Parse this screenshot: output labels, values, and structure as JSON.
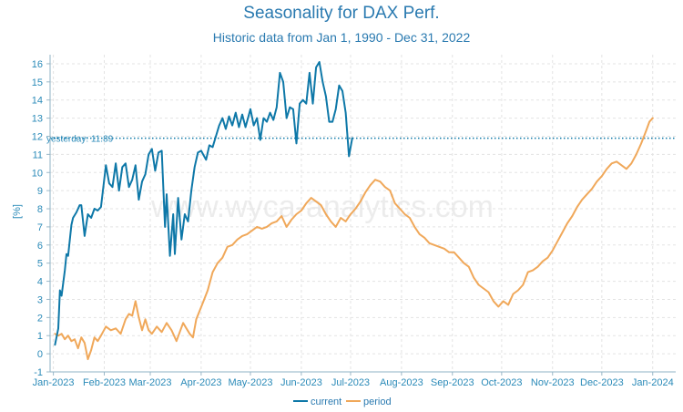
{
  "chart_data": {
    "type": "line",
    "title": "Seasonality for DAX Perf.",
    "subtitle": "Historic data from Jan 1, 1990 - Dec 31, 2022",
    "ylabel": "[%]",
    "xlabel": "",
    "ylim": [
      -1,
      16.5
    ],
    "yticks": [
      -1,
      0,
      1,
      2,
      3,
      4,
      5,
      6,
      7,
      8,
      9,
      10,
      11,
      12,
      13,
      14,
      15,
      16
    ],
    "xlim": [
      "2022-12-30",
      "2024-01-15"
    ],
    "xticks": [
      {
        "date": "2023-01-01",
        "label": "Jan-2023"
      },
      {
        "date": "2023-02-01",
        "label": "Feb-2023"
      },
      {
        "date": "2023-03-01",
        "label": "Mar-2023"
      },
      {
        "date": "2023-04-01",
        "label": "Apr-2023"
      },
      {
        "date": "2023-05-01",
        "label": "May-2023"
      },
      {
        "date": "2023-06-01",
        "label": "Jun-2023"
      },
      {
        "date": "2023-07-01",
        "label": "Jul-2023"
      },
      {
        "date": "2023-08-01",
        "label": "Aug-2023"
      },
      {
        "date": "2023-09-01",
        "label": "Sep-2023"
      },
      {
        "date": "2023-10-01",
        "label": "Oct-2023"
      },
      {
        "date": "2023-11-01",
        "label": "Nov-2023"
      },
      {
        "date": "2023-12-01",
        "label": "Dec-2023"
      },
      {
        "date": "2024-01-01",
        "label": "Jan-2024"
      }
    ],
    "grid": true,
    "legend_position": "bottom-center",
    "reference_line": {
      "value": 11.89,
      "label": "yesterday: 11.89",
      "color": "#0e78a8"
    },
    "watermark": "www.wyca-analytics.com",
    "series": [
      {
        "name": "current",
        "color": "#0e78a8",
        "points": [
          [
            "2023-01-02",
            0.5
          ],
          [
            "2023-01-04",
            1.4
          ],
          [
            "2023-01-05",
            3.5
          ],
          [
            "2023-01-06",
            3.2
          ],
          [
            "2023-01-08",
            4.6
          ],
          [
            "2023-01-09",
            5.5
          ],
          [
            "2023-01-10",
            5.4
          ],
          [
            "2023-01-12",
            7.1
          ],
          [
            "2023-01-13",
            7.5
          ],
          [
            "2023-01-15",
            7.8
          ],
          [
            "2023-01-17",
            8.2
          ],
          [
            "2023-01-18",
            8.2
          ],
          [
            "2023-01-20",
            6.5
          ],
          [
            "2023-01-22",
            7.7
          ],
          [
            "2023-01-24",
            7.5
          ],
          [
            "2023-01-26",
            8.0
          ],
          [
            "2023-01-28",
            7.9
          ],
          [
            "2023-01-30",
            8.1
          ],
          [
            "2023-02-02",
            10.4
          ],
          [
            "2023-02-04",
            9.4
          ],
          [
            "2023-02-06",
            9.2
          ],
          [
            "2023-02-08",
            10.5
          ],
          [
            "2023-02-10",
            9.0
          ],
          [
            "2023-02-12",
            10.3
          ],
          [
            "2023-02-14",
            10.5
          ],
          [
            "2023-02-16",
            9.2
          ],
          [
            "2023-02-18",
            9.6
          ],
          [
            "2023-02-20",
            10.4
          ],
          [
            "2023-02-22",
            8.5
          ],
          [
            "2023-02-24",
            9.5
          ],
          [
            "2023-02-26",
            9.9
          ],
          [
            "2023-02-28",
            11.0
          ],
          [
            "2023-03-02",
            11.3
          ],
          [
            "2023-03-04",
            10.1
          ],
          [
            "2023-03-06",
            11.1
          ],
          [
            "2023-03-08",
            11.2
          ],
          [
            "2023-03-10",
            7.0
          ],
          [
            "2023-03-11",
            8.8
          ],
          [
            "2023-03-13",
            5.4
          ],
          [
            "2023-03-15",
            7.7
          ],
          [
            "2023-03-16",
            5.5
          ],
          [
            "2023-03-18",
            8.6
          ],
          [
            "2023-03-20",
            6.3
          ],
          [
            "2023-03-22",
            7.7
          ],
          [
            "2023-03-24",
            7.3
          ],
          [
            "2023-03-26",
            9.0
          ],
          [
            "2023-03-28",
            10.3
          ],
          [
            "2023-03-30",
            11.1
          ],
          [
            "2023-04-01",
            11.2
          ],
          [
            "2023-04-04",
            10.7
          ],
          [
            "2023-04-06",
            11.5
          ],
          [
            "2023-04-08",
            11.4
          ],
          [
            "2023-04-10",
            12.0
          ],
          [
            "2023-04-12",
            12.6
          ],
          [
            "2023-04-14",
            13.0
          ],
          [
            "2023-04-16",
            12.4
          ],
          [
            "2023-04-18",
            13.1
          ],
          [
            "2023-04-20",
            12.6
          ],
          [
            "2023-04-22",
            13.3
          ],
          [
            "2023-04-24",
            12.5
          ],
          [
            "2023-04-26",
            13.2
          ],
          [
            "2023-04-28",
            12.5
          ],
          [
            "2023-05-01",
            13.5
          ],
          [
            "2023-05-03",
            12.6
          ],
          [
            "2023-05-05",
            13.0
          ],
          [
            "2023-05-07",
            11.8
          ],
          [
            "2023-05-09",
            13.0
          ],
          [
            "2023-05-11",
            12.8
          ],
          [
            "2023-05-13",
            13.3
          ],
          [
            "2023-05-15",
            12.9
          ],
          [
            "2023-05-17",
            13.6
          ],
          [
            "2023-05-19",
            15.5
          ],
          [
            "2023-05-21",
            15.0
          ],
          [
            "2023-05-23",
            13.0
          ],
          [
            "2023-05-25",
            13.6
          ],
          [
            "2023-05-27",
            13.5
          ],
          [
            "2023-05-29",
            11.6
          ],
          [
            "2023-05-31",
            13.8
          ],
          [
            "2023-06-02",
            14.0
          ],
          [
            "2023-06-04",
            13.8
          ],
          [
            "2023-06-06",
            15.5
          ],
          [
            "2023-06-08",
            13.8
          ],
          [
            "2023-06-10",
            15.8
          ],
          [
            "2023-06-12",
            16.1
          ],
          [
            "2023-06-14",
            15.0
          ],
          [
            "2023-06-16",
            14.2
          ],
          [
            "2023-06-18",
            12.8
          ],
          [
            "2023-06-20",
            12.8
          ],
          [
            "2023-06-22",
            13.5
          ],
          [
            "2023-06-24",
            14.8
          ],
          [
            "2023-06-26",
            14.5
          ],
          [
            "2023-06-28",
            13.3
          ],
          [
            "2023-06-30",
            10.9
          ],
          [
            "2023-07-02",
            11.9
          ]
        ]
      },
      {
        "name": "period",
        "color": "#f0a85a",
        "points": [
          [
            "2023-01-02",
            1.1
          ],
          [
            "2023-01-04",
            1.0
          ],
          [
            "2023-01-06",
            1.1
          ],
          [
            "2023-01-08",
            0.8
          ],
          [
            "2023-01-10",
            1.0
          ],
          [
            "2023-01-12",
            0.7
          ],
          [
            "2023-01-14",
            0.8
          ],
          [
            "2023-01-16",
            0.3
          ],
          [
            "2023-01-18",
            0.9
          ],
          [
            "2023-01-20",
            0.6
          ],
          [
            "2023-01-22",
            -0.3
          ],
          [
            "2023-01-24",
            0.2
          ],
          [
            "2023-01-26",
            0.9
          ],
          [
            "2023-01-28",
            0.7
          ],
          [
            "2023-01-30",
            1.0
          ],
          [
            "2023-02-02",
            1.5
          ],
          [
            "2023-02-05",
            1.3
          ],
          [
            "2023-02-08",
            1.4
          ],
          [
            "2023-02-11",
            1.1
          ],
          [
            "2023-02-14",
            1.9
          ],
          [
            "2023-02-16",
            2.2
          ],
          [
            "2023-02-18",
            2.1
          ],
          [
            "2023-02-20",
            2.9
          ],
          [
            "2023-02-22",
            2.0
          ],
          [
            "2023-02-24",
            1.3
          ],
          [
            "2023-02-26",
            1.9
          ],
          [
            "2023-02-28",
            1.3
          ],
          [
            "2023-03-02",
            1.1
          ],
          [
            "2023-03-05",
            1.5
          ],
          [
            "2023-03-08",
            1.2
          ],
          [
            "2023-03-11",
            1.7
          ],
          [
            "2023-03-14",
            1.3
          ],
          [
            "2023-03-17",
            0.7
          ],
          [
            "2023-03-19",
            1.2
          ],
          [
            "2023-03-21",
            1.7
          ],
          [
            "2023-03-23",
            1.4
          ],
          [
            "2023-03-25",
            1.1
          ],
          [
            "2023-03-27",
            0.9
          ],
          [
            "2023-03-29",
            1.9
          ],
          [
            "2023-04-02",
            2.8
          ],
          [
            "2023-04-05",
            3.5
          ],
          [
            "2023-04-08",
            4.5
          ],
          [
            "2023-04-11",
            5.0
          ],
          [
            "2023-04-14",
            5.3
          ],
          [
            "2023-04-17",
            5.9
          ],
          [
            "2023-04-20",
            6.0
          ],
          [
            "2023-04-23",
            6.3
          ],
          [
            "2023-04-26",
            6.5
          ],
          [
            "2023-04-29",
            6.6
          ],
          [
            "2023-05-02",
            6.8
          ],
          [
            "2023-05-05",
            7.0
          ],
          [
            "2023-05-08",
            6.9
          ],
          [
            "2023-05-11",
            7.0
          ],
          [
            "2023-05-14",
            7.2
          ],
          [
            "2023-05-17",
            7.3
          ],
          [
            "2023-05-20",
            7.6
          ],
          [
            "2023-05-23",
            7.0
          ],
          [
            "2023-05-26",
            7.4
          ],
          [
            "2023-05-29",
            7.7
          ],
          [
            "2023-06-01",
            7.9
          ],
          [
            "2023-06-04",
            8.3
          ],
          [
            "2023-06-07",
            8.6
          ],
          [
            "2023-06-10",
            8.4
          ],
          [
            "2023-06-13",
            8.2
          ],
          [
            "2023-06-16",
            7.7
          ],
          [
            "2023-06-19",
            7.3
          ],
          [
            "2023-06-22",
            7.0
          ],
          [
            "2023-06-25",
            7.5
          ],
          [
            "2023-06-28",
            7.3
          ],
          [
            "2023-07-01",
            7.7
          ],
          [
            "2023-07-04",
            8.0
          ],
          [
            "2023-07-07",
            8.4
          ],
          [
            "2023-07-10",
            8.9
          ],
          [
            "2023-07-13",
            9.3
          ],
          [
            "2023-07-16",
            9.6
          ],
          [
            "2023-07-19",
            9.5
          ],
          [
            "2023-07-22",
            9.2
          ],
          [
            "2023-07-25",
            9.0
          ],
          [
            "2023-07-28",
            8.3
          ],
          [
            "2023-07-31",
            8.0
          ],
          [
            "2023-08-03",
            7.7
          ],
          [
            "2023-08-06",
            7.5
          ],
          [
            "2023-08-09",
            7.0
          ],
          [
            "2023-08-12",
            6.6
          ],
          [
            "2023-08-15",
            6.4
          ],
          [
            "2023-08-18",
            6.1
          ],
          [
            "2023-08-21",
            6.0
          ],
          [
            "2023-08-24",
            5.9
          ],
          [
            "2023-08-27",
            5.8
          ],
          [
            "2023-08-30",
            5.6
          ],
          [
            "2023-09-02",
            5.6
          ],
          [
            "2023-09-05",
            5.3
          ],
          [
            "2023-09-08",
            5.0
          ],
          [
            "2023-09-11",
            4.8
          ],
          [
            "2023-09-14",
            4.2
          ],
          [
            "2023-09-17",
            3.8
          ],
          [
            "2023-09-20",
            3.6
          ],
          [
            "2023-09-23",
            3.4
          ],
          [
            "2023-09-26",
            2.9
          ],
          [
            "2023-09-29",
            2.6
          ],
          [
            "2023-10-02",
            2.9
          ],
          [
            "2023-10-05",
            2.7
          ],
          [
            "2023-10-08",
            3.3
          ],
          [
            "2023-10-11",
            3.5
          ],
          [
            "2023-10-14",
            3.8
          ],
          [
            "2023-10-17",
            4.5
          ],
          [
            "2023-10-20",
            4.6
          ],
          [
            "2023-10-23",
            4.8
          ],
          [
            "2023-10-26",
            5.1
          ],
          [
            "2023-10-29",
            5.3
          ],
          [
            "2023-11-01",
            5.7
          ],
          [
            "2023-11-04",
            6.2
          ],
          [
            "2023-11-07",
            6.7
          ],
          [
            "2023-11-10",
            7.2
          ],
          [
            "2023-11-13",
            7.6
          ],
          [
            "2023-11-16",
            8.1
          ],
          [
            "2023-11-19",
            8.5
          ],
          [
            "2023-11-22",
            8.8
          ],
          [
            "2023-11-25",
            9.1
          ],
          [
            "2023-11-28",
            9.5
          ],
          [
            "2023-12-01",
            9.8
          ],
          [
            "2023-12-04",
            10.2
          ],
          [
            "2023-12-07",
            10.5
          ],
          [
            "2023-12-10",
            10.6
          ],
          [
            "2023-12-13",
            10.4
          ],
          [
            "2023-12-16",
            10.2
          ],
          [
            "2023-12-19",
            10.5
          ],
          [
            "2023-12-22",
            11.0
          ],
          [
            "2023-12-25",
            11.6
          ],
          [
            "2023-12-28",
            12.3
          ],
          [
            "2023-12-30",
            12.8
          ],
          [
            "2024-01-01",
            13.0
          ]
        ]
      }
    ]
  }
}
